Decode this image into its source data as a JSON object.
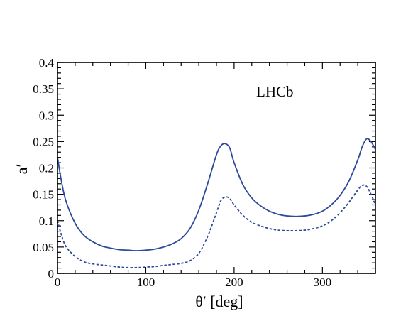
{
  "chart_data": {
    "type": "line",
    "xlabel": "θ′ [deg]",
    "ylabel": "a′",
    "annotation": "LHCb",
    "xlim": [
      0,
      360
    ],
    "ylim": [
      0,
      0.4
    ],
    "xticks": [
      0,
      100,
      200,
      300
    ],
    "xtick_labels": [
      "0",
      "100",
      "200",
      "300"
    ],
    "yticks": [
      0,
      0.05,
      0.1,
      0.15,
      0.2,
      0.25,
      0.3,
      0.35,
      0.4
    ],
    "ytick_labels": [
      "0",
      "0.05",
      "0.1",
      "0.15",
      "0.2",
      "0.25",
      "0.3",
      "0.35",
      "0.4"
    ],
    "grid": false,
    "legend": false,
    "colors": {
      "line": "#2b4a9a",
      "axis": "#000000"
    },
    "series": [
      {
        "style": "solid",
        "x": [
          0,
          5,
          10,
          20,
          30,
          40,
          50,
          60,
          70,
          80,
          90,
          100,
          110,
          120,
          130,
          140,
          150,
          160,
          170,
          180,
          185,
          190,
          195,
          200,
          210,
          220,
          230,
          240,
          250,
          260,
          270,
          280,
          290,
          300,
          310,
          320,
          330,
          340,
          345,
          350,
          355,
          360
        ],
        "y": [
          0.22,
          0.17,
          0.135,
          0.095,
          0.072,
          0.06,
          0.052,
          0.048,
          0.045,
          0.044,
          0.043,
          0.044,
          0.046,
          0.05,
          0.056,
          0.066,
          0.085,
          0.12,
          0.17,
          0.225,
          0.242,
          0.246,
          0.238,
          0.21,
          0.168,
          0.143,
          0.128,
          0.118,
          0.112,
          0.109,
          0.108,
          0.109,
          0.112,
          0.118,
          0.13,
          0.148,
          0.175,
          0.215,
          0.24,
          0.255,
          0.25,
          0.235
        ]
      },
      {
        "style": "dashed",
        "x": [
          0,
          5,
          10,
          20,
          30,
          40,
          50,
          60,
          70,
          80,
          90,
          100,
          110,
          120,
          130,
          140,
          150,
          160,
          170,
          180,
          185,
          190,
          195,
          200,
          210,
          220,
          230,
          240,
          250,
          260,
          270,
          280,
          290,
          300,
          310,
          320,
          330,
          340,
          345,
          350,
          355,
          360
        ],
        "y": [
          0.1,
          0.07,
          0.05,
          0.032,
          0.022,
          0.018,
          0.016,
          0.014,
          0.012,
          0.011,
          0.011,
          0.012,
          0.013,
          0.015,
          0.017,
          0.019,
          0.024,
          0.038,
          0.07,
          0.115,
          0.138,
          0.145,
          0.142,
          0.13,
          0.11,
          0.097,
          0.09,
          0.085,
          0.082,
          0.081,
          0.081,
          0.082,
          0.085,
          0.09,
          0.1,
          0.115,
          0.135,
          0.158,
          0.167,
          0.165,
          0.15,
          0.13
        ]
      }
    ]
  }
}
